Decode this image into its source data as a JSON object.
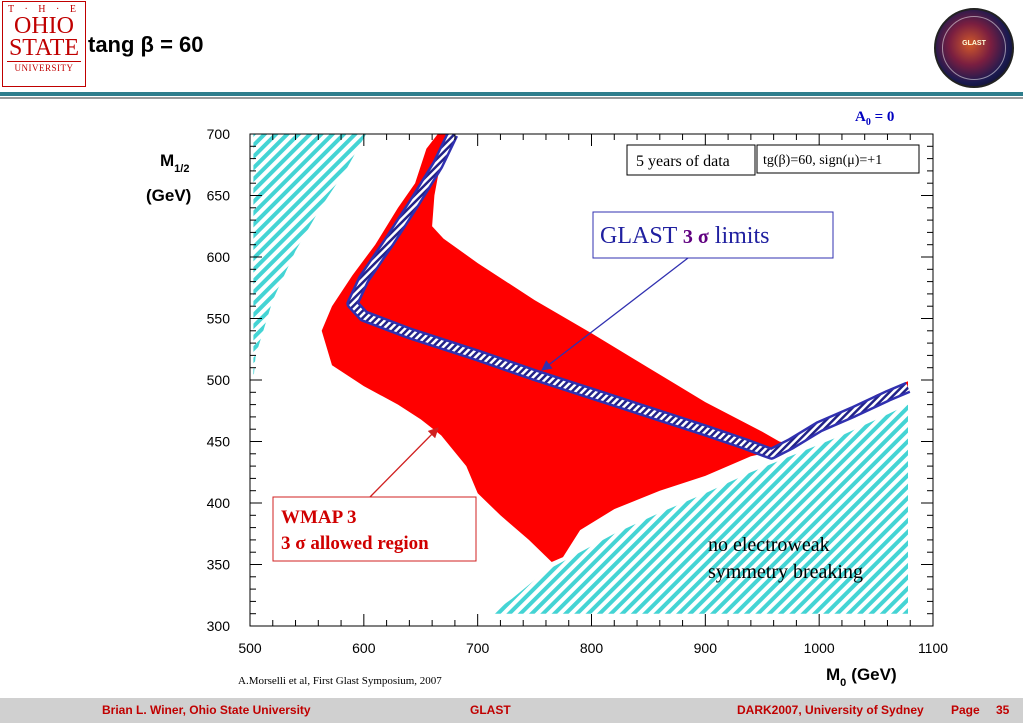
{
  "header": {
    "title": "tang β = 60",
    "logo": {
      "the": "T · H · E",
      "line1": "OHIO",
      "line2": "STATE",
      "line3": "UNIVERSITY"
    },
    "badge_text": "GLAST"
  },
  "footer": {
    "author": "Brian L. Winer, Ohio State University",
    "center": "GLAST",
    "venue": "DARK2007,  University of Sydney",
    "page_label": "Page",
    "page_number": "35"
  },
  "colors": {
    "allowed": "#ff0000",
    "hatch": "#44d4d4",
    "glast_line": "#3030b0",
    "title_teal": "#2e7d8c",
    "footer_text": "#c00000"
  },
  "chart_data": {
    "type": "area",
    "xlabel_main": "M",
    "xlabel_sub": "0",
    "xlabel_unit": "(GeV)",
    "ylabel_main": "M",
    "ylabel_sub": "1/2",
    "ylabel_unit": "(GeV)",
    "xlim": [
      500,
      1100
    ],
    "ylim": [
      300,
      700
    ],
    "x_ticks": [
      500,
      600,
      700,
      800,
      900,
      1000,
      1100
    ],
    "y_ticks": [
      300,
      350,
      400,
      450,
      500,
      550,
      600,
      650,
      700
    ],
    "a0_label_main": "A",
    "a0_label_sub": "0",
    "a0_label_rest": " = 0",
    "legend_box1": "5 years of data",
    "legend_box2": "tg(β)=60, sign(μ)=+1",
    "glast_label_pre": "GLAST ",
    "glast_label_sigma": "3 σ",
    "glast_label_post": " limits",
    "wmap_line1": "WMAP 3",
    "wmap_line2": "3 σ allowed region",
    "no_ewsb_line1": "no electroweak",
    "no_ewsb_line2": "symmetry breaking",
    "credit": "A.Morselli et al, First Glast Symposium, 2007",
    "series": [
      {
        "name": "WMAP 3 3σ allowed region",
        "type": "region",
        "points": [
          [
            655,
            688
          ],
          [
            665,
            700
          ],
          [
            672,
            700
          ],
          [
            662,
            650
          ],
          [
            660,
            625
          ],
          [
            670,
            615
          ],
          [
            700,
            595
          ],
          [
            750,
            565
          ],
          [
            800,
            538
          ],
          [
            850,
            510
          ],
          [
            900,
            482
          ],
          [
            950,
            458
          ],
          [
            965,
            450
          ],
          [
            975,
            448
          ],
          [
            990,
            455
          ],
          [
            1010,
            467
          ],
          [
            1030,
            477
          ],
          [
            1050,
            488
          ],
          [
            1078,
            499
          ],
          [
            1078,
            492
          ],
          [
            1040,
            476
          ],
          [
            1000,
            462
          ],
          [
            975,
            452
          ],
          [
            960,
            442
          ],
          [
            940,
            438
          ],
          [
            900,
            422
          ],
          [
            860,
            410
          ],
          [
            820,
            395
          ],
          [
            790,
            378
          ],
          [
            775,
            356
          ],
          [
            765,
            352
          ],
          [
            745,
            370
          ],
          [
            720,
            390
          ],
          [
            700,
            408
          ],
          [
            690,
            430
          ],
          [
            668,
            455
          ],
          [
            650,
            468
          ],
          [
            630,
            480
          ],
          [
            600,
            495
          ],
          [
            572,
            512
          ],
          [
            563,
            540
          ],
          [
            572,
            560
          ],
          [
            590,
            585
          ],
          [
            610,
            610
          ],
          [
            630,
            640
          ],
          [
            645,
            660
          ]
        ]
      },
      {
        "name": "GLAST 3σ limits",
        "type": "curve",
        "points": [
          [
            678,
            700
          ],
          [
            665,
            675
          ],
          [
            645,
            645
          ],
          [
            622,
            612
          ],
          [
            600,
            582
          ],
          [
            590,
            562
          ],
          [
            600,
            552
          ],
          [
            640,
            538
          ],
          [
            700,
            520
          ],
          [
            750,
            504
          ],
          [
            800,
            489
          ],
          [
            850,
            474
          ],
          [
            900,
            459
          ],
          [
            935,
            448
          ],
          [
            958,
            440
          ],
          [
            975,
            448
          ],
          [
            1000,
            462
          ],
          [
            1030,
            474
          ],
          [
            1060,
            487
          ],
          [
            1078,
            494
          ]
        ]
      },
      {
        "name": "no electroweak symmetry breaking",
        "type": "excluded",
        "points": [
          [
            712,
            310
          ],
          [
            1078,
            310
          ],
          [
            1078,
            480
          ],
          [
            1060,
            472
          ],
          [
            1020,
            455
          ],
          [
            980,
            440
          ],
          [
            940,
            425
          ],
          [
            900,
            408
          ],
          [
            860,
            392
          ],
          [
            820,
            375
          ],
          [
            790,
            360
          ],
          [
            760,
            345
          ],
          [
            730,
            322
          ]
        ]
      },
      {
        "name": "",
        "type": "excluded",
        "points": [
          [
            503,
            700
          ],
          [
            602,
            700
          ],
          [
            585,
            672
          ],
          [
            562,
            640
          ],
          [
            540,
            605
          ],
          [
            520,
            565
          ],
          [
            505,
            520
          ],
          [
            503,
            500
          ]
        ]
      }
    ]
  }
}
